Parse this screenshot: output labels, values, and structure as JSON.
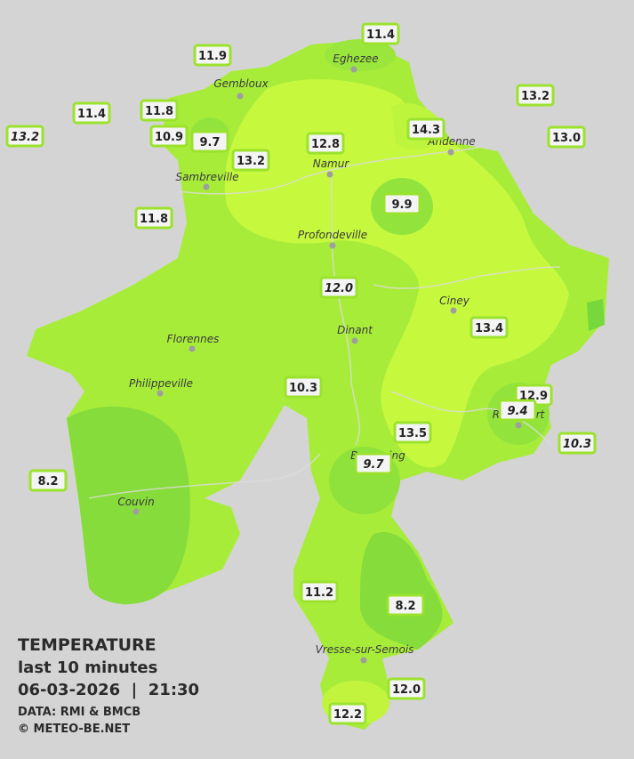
{
  "legend": {
    "title": "TEMPERATURE",
    "subtitle": "last 10 minutes",
    "timestamp": "06-03-2026  |  21:30",
    "source": "DATA: RMI & BMCB",
    "copyright": "© METEO-BE.NET"
  },
  "towns": [
    "Eghezee",
    "Gembloux",
    "Andenne",
    "Namur",
    "Sambreville",
    "Profondeville",
    "Ciney",
    "Dinant",
    "Florennes",
    "Philippeville",
    "Rochefort",
    "Beauraing",
    "Couvin",
    "Vresse-sur-Semois"
  ],
  "stations": [
    "11.4",
    "11.9",
    "13.2",
    "11.4",
    "11.8",
    "13.2",
    "10.9",
    "9.7",
    "14.3",
    "13.0",
    "12.8",
    "13.2",
    "9.9",
    "11.8",
    "12.0",
    "13.4",
    "10.3",
    "12.9",
    "9.4",
    "13.5",
    "10.3",
    "9.7",
    "8.2",
    "11.2",
    "8.2",
    "12.0",
    "12.2"
  ]
}
